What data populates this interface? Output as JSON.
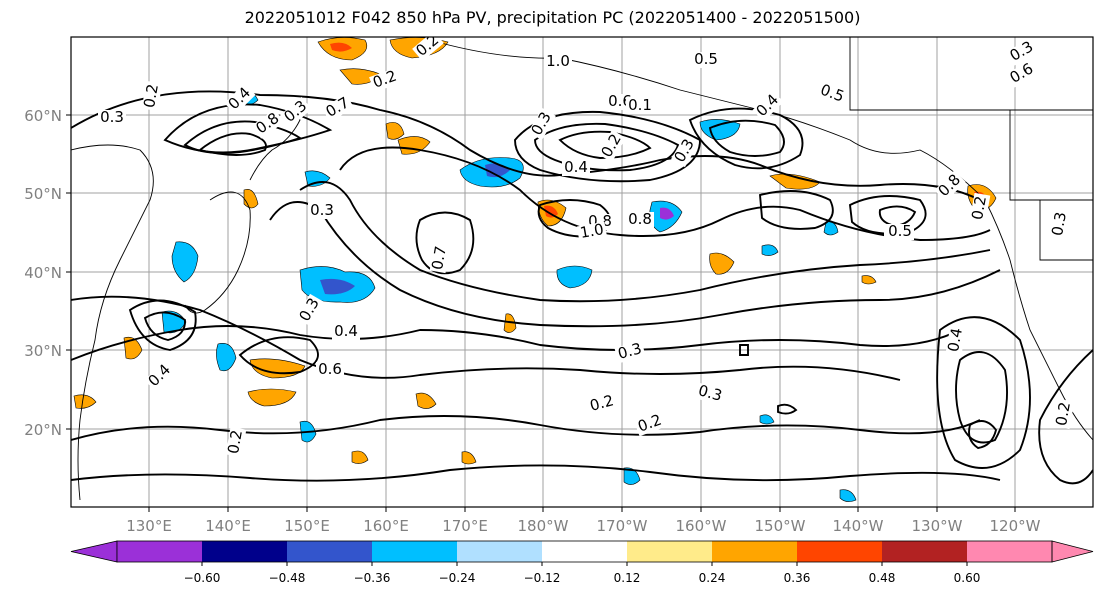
{
  "title": "2022051012 F042 850 hPa PV, precipitation PC (2022051400 - 2022051500)",
  "lat_labels": [
    "60°N",
    "50°N",
    "40°N",
    "30°N",
    "20°N"
  ],
  "lon_labels": [
    "130°E",
    "140°E",
    "150°E",
    "160°E",
    "170°E",
    "180°W",
    "170°W",
    "160°W",
    "150°W",
    "140°W",
    "130°W",
    "120°W"
  ],
  "colorbar": {
    "colors": [
      "#9b30d8",
      "#00008b",
      "#3355cc",
      "#00bfff",
      "#b0e0ff",
      "#ffffff",
      "#ffeb8a",
      "#ffa500",
      "#ff4500",
      "#b22222",
      "#ff88b0"
    ],
    "tick_labels": [
      "−0.60",
      "−0.48",
      "−0.36",
      "−0.24",
      "−0.12",
      "0.12",
      "0.24",
      "0.36",
      "0.48",
      "0.60"
    ]
  },
  "contour_labels": [
    "0.2",
    "0.3",
    "0.4",
    "0.8",
    "0.7",
    "0.3",
    "1.0",
    "0.5",
    "0.6",
    "0.2",
    "0.3",
    "0.4",
    "0.3",
    "0.4",
    "0.5",
    "0.6",
    "0.3",
    "0.2",
    "0.2",
    "0.3",
    "0.1",
    "0.5",
    "0.2",
    "0.3",
    "0.8",
    "0.3",
    "0.4",
    "0.6",
    "0.3",
    "0.2",
    "0.3",
    "0.2",
    "0.2",
    "0.4",
    "0.8",
    "1.0",
    "0.8",
    "0.5",
    "0.7",
    "0.2",
    "0.4"
  ]
}
